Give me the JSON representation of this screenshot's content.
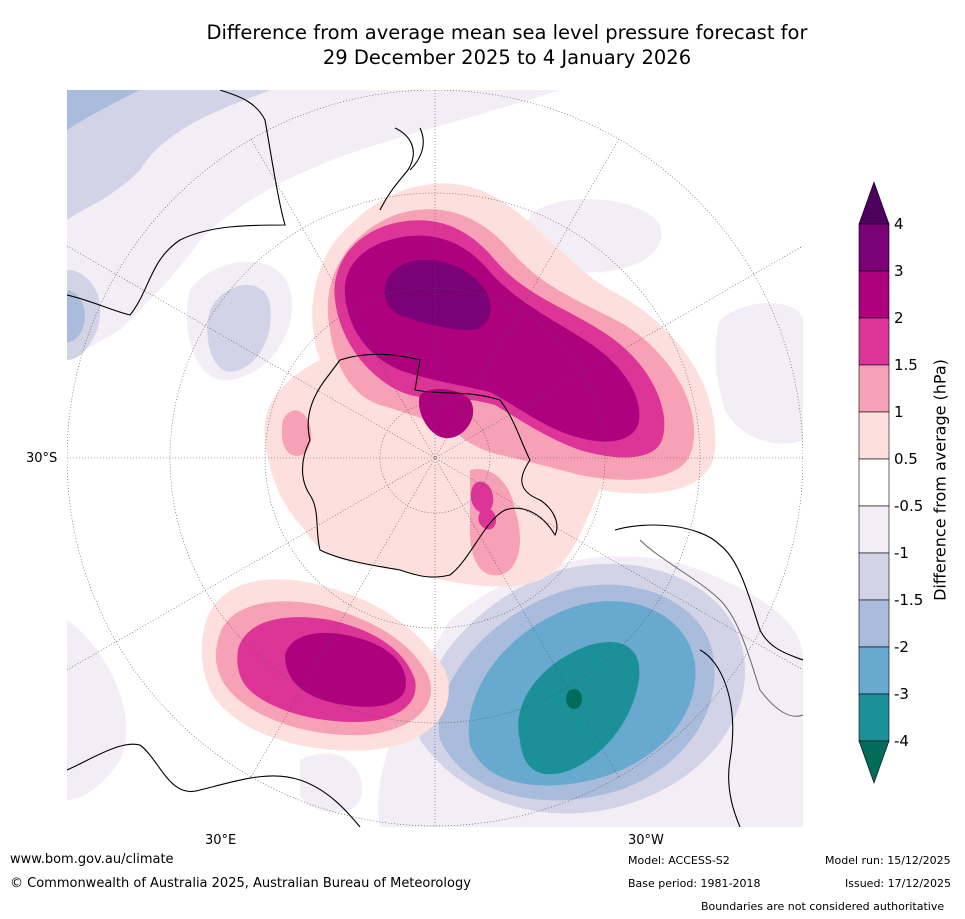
{
  "title_line1": "Difference from average mean sea level pressure forecast for",
  "title_line2": "29 December 2025 to 4 January 2026",
  "map": {
    "projection": "south-polar stereographic",
    "lon_labels": [
      "30°E",
      "30°W"
    ],
    "lat_labels": [
      "30°S"
    ]
  },
  "colorbar": {
    "title": "Difference from average (hPa)",
    "ticks": [
      "4",
      "3",
      "2",
      "1.5",
      "1",
      "0.5",
      "-0.5",
      "-1",
      "-1.5",
      "-2",
      "-3",
      "-4"
    ],
    "colors": {
      "gt4": "#4d005e",
      "3to4": "#7a0177",
      "2to3": "#ae017e",
      "1.5to2": "#dd3497",
      "1to1.5": "#f7a1b7",
      "0.5to1": "#fde0dd",
      "neutral": "#ffffff",
      "m1tom05": "#f3edf5",
      "m15tom1": "#d2d3e6",
      "m2tom15": "#aabcdb",
      "m3tom2": "#67a9cf",
      "m4tom3": "#1c9099",
      "ltm4": "#016c59"
    }
  },
  "footer": {
    "website": "www.bom.gov.au/climate",
    "copyright": "© Commonwealth of Australia 2025, Australian Bureau of Meteorology",
    "model": "Model: ACCESS-S2",
    "base_period": "Base period: 1981-2018",
    "model_run": "Model run: 15/12/2025",
    "issued": "Issued: 17/12/2025",
    "disclaimer": "Boundaries are not considered authoritative"
  }
}
